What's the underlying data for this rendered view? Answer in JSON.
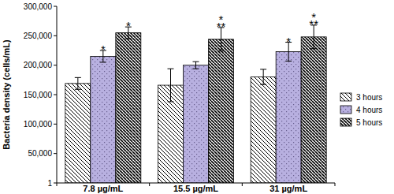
{
  "chart_data": {
    "type": "bar",
    "y_label": "Bacteria density (cells/mL)",
    "categories": [
      "7.8 µg/mL",
      "15.5 µg/mL",
      "31 µg/mL"
    ],
    "series": [
      {
        "name": "3 hours",
        "color": "#ffffff",
        "values": [
          169000,
          166000,
          180000
        ],
        "errors": [
          10000,
          28000,
          13000
        ]
      },
      {
        "name": "4 hours",
        "color": "#b8b0e0",
        "values": [
          215000,
          200000,
          223000
        ],
        "errors": [
          10000,
          6000,
          16000
        ],
        "significance": [
          [
            "*"
          ],
          null,
          [
            "*"
          ]
        ]
      },
      {
        "name": "5 hours",
        "color": "#ffffff",
        "values": [
          255000,
          244000,
          248000
        ],
        "errors": [
          10000,
          20000,
          20000
        ],
        "significance": [
          [
            "*"
          ],
          [
            "*",
            "**"
          ],
          [
            "*",
            "**"
          ]
        ]
      }
    ],
    "ylim": [
      1,
      300000
    ],
    "yticks": [
      1,
      {
        "value": 50000,
        "label": "50,000"
      },
      {
        "value": 100000,
        "label": "100,000"
      },
      {
        "value": 150000,
        "label": "150,000"
      },
      {
        "value": 200000,
        "label": "200,000"
      },
      {
        "value": 250000,
        "label": "250,000"
      },
      {
        "value": 300000,
        "label": "300,000"
      }
    ],
    "legend": "right",
    "grid": false
  }
}
